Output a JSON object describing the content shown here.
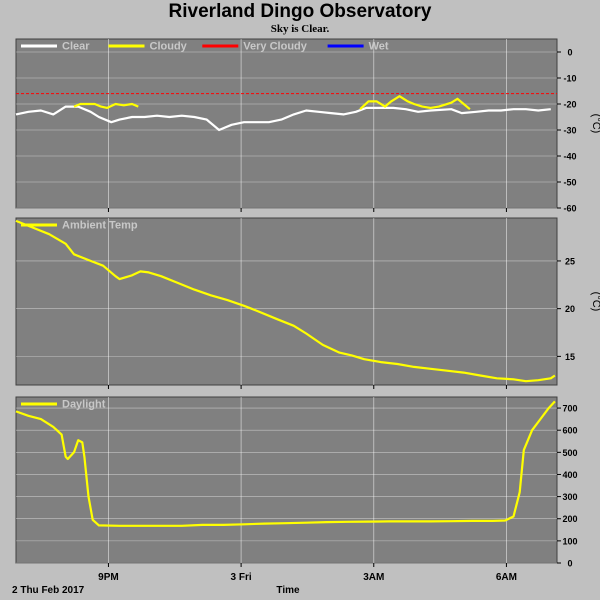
{
  "title": "Riverland Dingo Observatory",
  "subtitle": "Sky is Clear.",
  "colors": {
    "background": "#c0c0c0",
    "panel": "#808080",
    "grid": "#ffffff",
    "clear": "#ffffff",
    "cloudy": "#ffff00",
    "very_cloudy": "#ff0000",
    "wet": "#0000ff"
  },
  "chart_data": [
    {
      "type": "line",
      "name": "sky-temperature",
      "ylabel": "(°C)",
      "ylim": [
        -60,
        5
      ],
      "yticks": [
        0,
        -10,
        -20,
        -30,
        -40,
        -50,
        -60
      ],
      "threshold": -16,
      "legend": [
        "Clear",
        "Cloudy",
        "Very Cloudy",
        "Wet"
      ],
      "series": [
        {
          "name": "Clear",
          "color": "#ffffff",
          "points": [
            [
              0,
              -24
            ],
            [
              0.3,
              -23
            ],
            [
              0.6,
              -22.5
            ],
            [
              0.9,
              -24
            ],
            [
              1.2,
              -21
            ],
            [
              1.5,
              -21
            ],
            [
              1.8,
              -23
            ],
            [
              2.0,
              -25
            ],
            [
              2.3,
              -27
            ],
            [
              2.5,
              -26
            ],
            [
              2.8,
              -25
            ],
            [
              3.1,
              -25
            ],
            [
              3.4,
              -24.5
            ],
            [
              3.7,
              -25
            ],
            [
              4.0,
              -24.5
            ],
            [
              4.3,
              -25
            ],
            [
              4.6,
              -26
            ],
            [
              4.9,
              -30
            ],
            [
              5.2,
              -28
            ],
            [
              5.5,
              -27
            ],
            [
              5.8,
              -27
            ],
            [
              6.1,
              -27
            ],
            [
              6.4,
              -26
            ],
            [
              6.7,
              -24
            ],
            [
              7.0,
              -22.5
            ],
            [
              7.3,
              -23
            ],
            [
              7.6,
              -23.5
            ],
            [
              7.9,
              -24
            ],
            [
              8.2,
              -23
            ],
            [
              8.45,
              -21.5
            ],
            [
              8.8,
              -21.5
            ],
            [
              9.1,
              -21.5
            ],
            [
              9.4,
              -22
            ],
            [
              9.7,
              -23
            ],
            [
              10.0,
              -22.5
            ],
            [
              10.5,
              -22
            ],
            [
              10.75,
              -23.5
            ],
            [
              11.1,
              -23
            ],
            [
              11.4,
              -22.5
            ],
            [
              11.7,
              -22.5
            ],
            [
              12.0,
              -22
            ],
            [
              12.3,
              -22
            ],
            [
              12.6,
              -22.5
            ],
            [
              12.9,
              -22
            ]
          ]
        },
        {
          "name": "Cloudy",
          "color": "#ffff00",
          "points": [
            [
              1.4,
              -21
            ],
            [
              1.55,
              -20
            ],
            [
              1.75,
              -20
            ],
            [
              1.9,
              -20
            ],
            [
              2.05,
              -21
            ],
            [
              2.2,
              -21.5
            ],
            [
              2.4,
              -20
            ],
            [
              2.6,
              -20.5
            ],
            [
              2.8,
              -20
            ],
            [
              2.95,
              -21
            ]
          ]
        },
        {
          "name": "Cloudy",
          "color": "#ffff00",
          "points": [
            [
              8.3,
              -22
            ],
            [
              8.5,
              -19
            ],
            [
              8.7,
              -19
            ],
            [
              8.9,
              -21
            ],
            [
              9.05,
              -19
            ],
            [
              9.25,
              -17
            ],
            [
              9.45,
              -19
            ],
            [
              9.6,
              -20
            ],
            [
              9.8,
              -21
            ],
            [
              10.0,
              -21.5
            ],
            [
              10.2,
              -21
            ],
            [
              10.5,
              -19.5
            ],
            [
              10.65,
              -18
            ],
            [
              10.8,
              -20
            ],
            [
              10.95,
              -22
            ]
          ]
        }
      ]
    },
    {
      "type": "line",
      "name": "ambient-temperature",
      "ylabel": "(°C)",
      "ylim": [
        12,
        29.5
      ],
      "yticks": [
        15,
        20,
        25
      ],
      "legend": [
        "Ambient Temp"
      ],
      "series": [
        {
          "name": "Ambient Temp",
          "color": "#ffff00",
          "points": [
            [
              0,
              29.2
            ],
            [
              0.4,
              28.5
            ],
            [
              0.8,
              27.8
            ],
            [
              1.2,
              26.8
            ],
            [
              1.4,
              25.7
            ],
            [
              1.8,
              25.0
            ],
            [
              2.1,
              24.5
            ],
            [
              2.4,
              23.4
            ],
            [
              2.5,
              23.1
            ],
            [
              2.8,
              23.5
            ],
            [
              3.0,
              23.9
            ],
            [
              3.2,
              23.8
            ],
            [
              3.5,
              23.4
            ],
            [
              3.9,
              22.7
            ],
            [
              4.3,
              22.0
            ],
            [
              4.7,
              21.4
            ],
            [
              5.1,
              20.9
            ],
            [
              5.5,
              20.3
            ],
            [
              5.8,
              19.8
            ],
            [
              6.3,
              18.9
            ],
            [
              6.7,
              18.2
            ],
            [
              7.0,
              17.4
            ],
            [
              7.4,
              16.2
            ],
            [
              7.8,
              15.4
            ],
            [
              8.1,
              15.1
            ],
            [
              8.4,
              14.7
            ],
            [
              8.8,
              14.4
            ],
            [
              9.2,
              14.2
            ],
            [
              9.6,
              13.9
            ],
            [
              10.0,
              13.7
            ],
            [
              10.4,
              13.5
            ],
            [
              10.8,
              13.3
            ],
            [
              11.2,
              13.0
            ],
            [
              11.6,
              12.7
            ],
            [
              12.0,
              12.6
            ],
            [
              12.3,
              12.4
            ],
            [
              12.6,
              12.5
            ],
            [
              12.9,
              12.7
            ],
            [
              13.0,
              13.0
            ]
          ]
        }
      ]
    },
    {
      "type": "line",
      "name": "daylight",
      "ylabel": "",
      "ylim": [
        0,
        750
      ],
      "yticks": [
        0,
        100,
        200,
        300,
        400,
        500,
        600,
        700
      ],
      "legend": [
        "Daylight"
      ],
      "series": [
        {
          "name": "Daylight",
          "color": "#ffff00",
          "points": [
            [
              0,
              685
            ],
            [
              0.3,
              665
            ],
            [
              0.6,
              650
            ],
            [
              0.9,
              615
            ],
            [
              1.1,
              580
            ],
            [
              1.2,
              480
            ],
            [
              1.25,
              470
            ],
            [
              1.4,
              500
            ],
            [
              1.5,
              555
            ],
            [
              1.6,
              545
            ],
            [
              1.65,
              480
            ],
            [
              1.75,
              300
            ],
            [
              1.85,
              195
            ],
            [
              2.0,
              170
            ],
            [
              2.5,
              168
            ],
            [
              3.0,
              168
            ],
            [
              3.5,
              168
            ],
            [
              4.0,
              168
            ],
            [
              4.5,
              172
            ],
            [
              5.0,
              172
            ],
            [
              5.5,
              175
            ],
            [
              6.0,
              178
            ],
            [
              6.5,
              180
            ],
            [
              7.0,
              182
            ],
            [
              7.5,
              185
            ],
            [
              8.0,
              186
            ],
            [
              8.5,
              187
            ],
            [
              9.0,
              188
            ],
            [
              9.5,
              188
            ],
            [
              10.0,
              188
            ],
            [
              10.5,
              189
            ],
            [
              11.0,
              190
            ],
            [
              11.5,
              190
            ],
            [
              11.8,
              192
            ],
            [
              12.0,
              210
            ],
            [
              12.15,
              320
            ],
            [
              12.25,
              510
            ],
            [
              12.45,
              600
            ],
            [
              12.65,
              650
            ],
            [
              12.85,
              700
            ],
            [
              13.0,
              730
            ]
          ]
        }
      ]
    }
  ],
  "x_axis": {
    "label": "Time",
    "date_label": "2 Thu Feb 2017",
    "range_hours_from_1900": [
      0,
      13.05
    ],
    "ticks": [
      {
        "label": "9PM",
        "hour": 2.23
      },
      {
        "label": "3 Fri",
        "hour": 5.43
      },
      {
        "label": "3AM",
        "hour": 8.63
      },
      {
        "label": "6AM",
        "hour": 11.83
      }
    ]
  }
}
